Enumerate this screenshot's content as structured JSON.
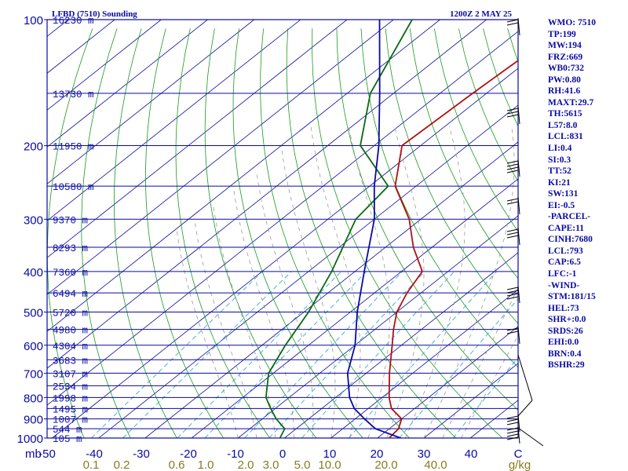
{
  "chart_data": {
    "type": "line",
    "title_left": "LFBD (7510) Sounding",
    "title_right": "1200Z  2 MAY 25",
    "pressure_ticks": [
      100,
      200,
      300,
      400,
      500,
      600,
      700,
      800,
      900,
      1000
    ],
    "pressure_unit": "mb",
    "height_labels": [
      {
        "p": 100,
        "h": "16230 m"
      },
      {
        "p": 150,
        "h": "13730 m"
      },
      {
        "p": 200,
        "h": "11950 m"
      },
      {
        "p": 250,
        "h": "10580 m"
      },
      {
        "p": 300,
        "h": "9370 m"
      },
      {
        "p": 350,
        "h": "8293 m"
      },
      {
        "p": 400,
        "h": "7360 m"
      },
      {
        "p": 450,
        "h": "6494 m"
      },
      {
        "p": 500,
        "h": "5720 m"
      },
      {
        "p": 550,
        "h": "4980 m"
      },
      {
        "p": 600,
        "h": "4304 m"
      },
      {
        "p": 650,
        "h": "3683 m"
      },
      {
        "p": 700,
        "h": "3107 m"
      },
      {
        "p": 750,
        "h": "2534 m"
      },
      {
        "p": 800,
        "h": "1998 m"
      },
      {
        "p": 850,
        "h": "1495 m"
      },
      {
        "p": 900,
        "h": "1007 m"
      },
      {
        "p": 950,
        "h": "544 m"
      },
      {
        "p": 1000,
        "h": "105 m"
      }
    ],
    "temperature_ticks": [
      "-50",
      "-40",
      "-30",
      "-20",
      "-10",
      "0",
      "10",
      "20",
      "30",
      "40"
    ],
    "temperature_unit": "C",
    "mixing_ratio_ticks": [
      "0.1",
      "0.2",
      "0.6",
      "1.0",
      "2.0",
      "3.0",
      "5.0",
      "10.0",
      "20.0",
      "40.0"
    ],
    "mixing_ratio_unit": "g/kg",
    "xlim": [
      -50,
      50
    ],
    "ylim": [
      1000,
      100
    ],
    "y_scale": "log",
    "grid": true,
    "series": [
      {
        "key": "temperature",
        "color": "#b01010",
        "points": [
          [
            1000,
            22.5
          ],
          [
            950,
            22
          ],
          [
            900,
            20
          ],
          [
            850,
            15
          ],
          [
            800,
            11.5
          ],
          [
            700,
            5
          ],
          [
            600,
            -2
          ],
          [
            550,
            -6
          ],
          [
            500,
            -10
          ],
          [
            450,
            -13
          ],
          [
            400,
            -15.5
          ],
          [
            350,
            -24
          ],
          [
            300,
            -32.5
          ],
          [
            250,
            -44.5
          ],
          [
            200,
            -54
          ],
          [
            150,
            -53
          ],
          [
            100,
            -51
          ]
        ]
      },
      {
        "key": "dewpoint",
        "color": "#0a6a10",
        "points": [
          [
            1000,
            -1
          ],
          [
            950,
            -2.5
          ],
          [
            900,
            -7
          ],
          [
            850,
            -11
          ],
          [
            800,
            -15
          ],
          [
            700,
            -21
          ],
          [
            600,
            -25
          ],
          [
            500,
            -29
          ],
          [
            400,
            -35
          ],
          [
            300,
            -44
          ],
          [
            250,
            -46
          ],
          [
            200,
            -63
          ],
          [
            150,
            -75
          ],
          [
            100,
            -86
          ]
        ]
      },
      {
        "key": "parcel",
        "color": "#0a0aa0",
        "points": [
          [
            1000,
            25
          ],
          [
            950,
            17
          ],
          [
            900,
            12
          ],
          [
            850,
            7
          ],
          [
            800,
            3
          ],
          [
            700,
            -4
          ],
          [
            600,
            -10
          ],
          [
            500,
            -18.5
          ],
          [
            400,
            -28
          ],
          [
            300,
            -40
          ],
          [
            250,
            -49
          ],
          [
            200,
            -59
          ],
          [
            150,
            -73
          ],
          [
            100,
            -93
          ]
        ]
      }
    ]
  },
  "stats": [
    "WMO: 7510",
    "TP:199",
    "MW:194",
    "FRZ:669",
    "WB0:732",
    "PW:0.80",
    "RH:41.6",
    "MAXT:29.7",
    "TH:5615",
    "L57:8.0",
    "LCL:831",
    "LI:0.4",
    "SI:0.3",
    "TT:52",
    "KI:21",
    "SW:131",
    "EI:-0.5",
    "-PARCEL-",
    "CAPE:11",
    "CINH:7680",
    "LCL:793",
    "CAP:6.5",
    "LFC:-1",
    "-WIND-",
    "STM:181/15",
    "HEL:73",
    "SHR+:0.0",
    "SRDS:26",
    "EHI:0.0",
    "BRN:0.4",
    "BSHR:29"
  ],
  "colors": {
    "frame": "#0a0aa0",
    "isotherm": "#0a0aa0",
    "dry_adiabat": "#1a9a1a",
    "moist_adiabat": "#9a9a9a",
    "mixing_ratio": "#3aaad0",
    "mixing_label": "#8a7a20"
  }
}
